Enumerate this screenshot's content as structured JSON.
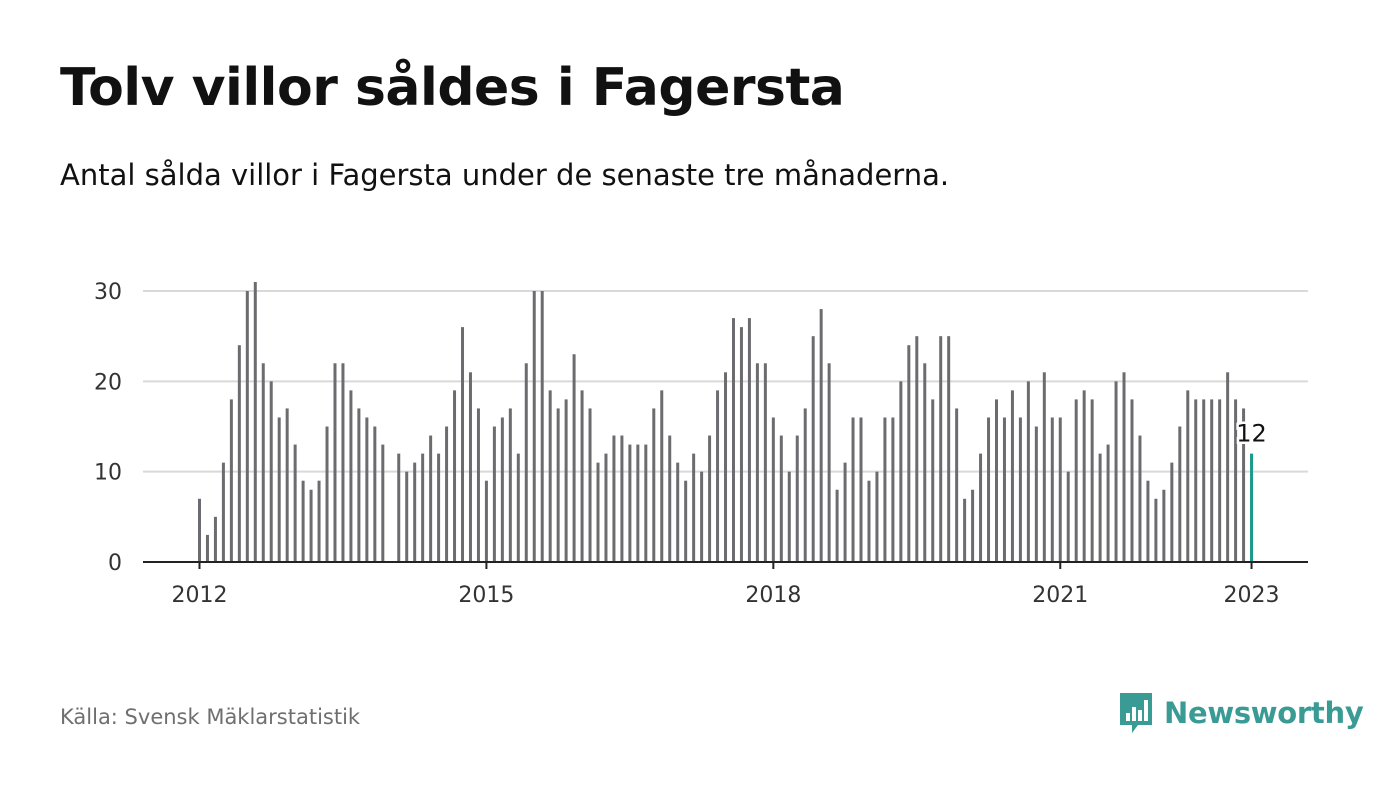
{
  "title": "Tolv villor såldes i Fagersta",
  "subtitle": "Antal sålda villor i Fagersta under de senaste tre månaderna.",
  "source": "Källa: Svensk Mäklarstatistik",
  "brand": {
    "name": "Newsworthy",
    "icon": "newsworthy-logo-icon",
    "color": "#3a9b94"
  },
  "colors": {
    "bar": "#6c6c70",
    "highlight": "#1a9a8a",
    "grid": "#d9d9d9",
    "axis": "#222222"
  },
  "chart_data": {
    "type": "bar",
    "x_unit": "month",
    "x_start": "2012-01",
    "x_end": "2023-01",
    "ylim": [
      0,
      31
    ],
    "yticks": [
      0,
      10,
      20,
      30
    ],
    "xticks": [
      "2012",
      "2015",
      "2018",
      "2021",
      "2023"
    ],
    "grid": true,
    "values": [
      7,
      3,
      5,
      11,
      18,
      24,
      30,
      31,
      22,
      20,
      16,
      17,
      13,
      9,
      8,
      9,
      15,
      22,
      22,
      19,
      17,
      16,
      15,
      13,
      null,
      12,
      10,
      11,
      12,
      14,
      12,
      15,
      19,
      26,
      21,
      17,
      9,
      15,
      16,
      17,
      12,
      22,
      30,
      30,
      19,
      17,
      18,
      23,
      19,
      17,
      11,
      12,
      14,
      14,
      13,
      13,
      13,
      17,
      19,
      14,
      11,
      9,
      12,
      10,
      14,
      19,
      21,
      27,
      26,
      27,
      22,
      22,
      16,
      14,
      10,
      14,
      17,
      25,
      28,
      22,
      8,
      11,
      16,
      16,
      9,
      10,
      16,
      16,
      20,
      24,
      25,
      22,
      18,
      25,
      25,
      17,
      7,
      8,
      12,
      16,
      18,
      16,
      19,
      16,
      20,
      15,
      21,
      16,
      16,
      10,
      18,
      19,
      18,
      12,
      13,
      20,
      21,
      18,
      14,
      9,
      7,
      8,
      11,
      15,
      19,
      18,
      18,
      18,
      18,
      21,
      18,
      17,
      12
    ],
    "highlight": {
      "x": "2023-01",
      "value": 12,
      "label": "12"
    }
  }
}
